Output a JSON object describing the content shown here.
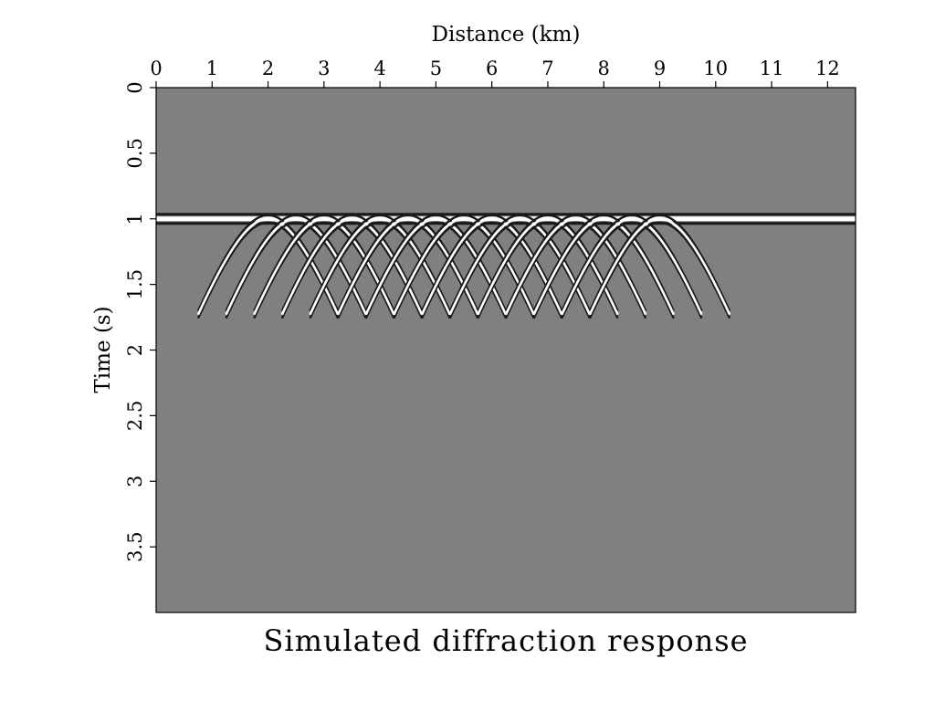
{
  "chart_data": {
    "type": "heatmap",
    "title": "Simulated diffraction response",
    "xlabel": "Distance (km)",
    "ylabel": "Time (s)",
    "xlim": [
      0,
      12.5
    ],
    "ylim": [
      0,
      4
    ],
    "x_axis_position": "top",
    "y_axis_inverted": true,
    "x_ticks": [
      0,
      1,
      2,
      3,
      4,
      5,
      6,
      7,
      8,
      9,
      10,
      11,
      12
    ],
    "y_ticks": [
      0,
      0.5,
      1,
      1.5,
      2,
      2.5,
      3,
      3.5
    ],
    "x_tick_labels": [
      "0",
      "1",
      "2",
      "3",
      "4",
      "5",
      "6",
      "7",
      "8",
      "9",
      "10",
      "11",
      "12"
    ],
    "y_tick_labels": [
      "0",
      "0.5",
      "1",
      "1.5",
      "2",
      "2.5",
      "3",
      "3.5"
    ],
    "background_color": "#808080",
    "reflector": {
      "time": 1.0,
      "x_from": 0,
      "x_to": 12.5
    },
    "diffractors": {
      "apex_time": 1.0,
      "apex_x": [
        2.0,
        2.5,
        3.0,
        3.5,
        4.0,
        4.5,
        5.0,
        5.5,
        6.0,
        6.5,
        7.0,
        7.5,
        8.0,
        8.5,
        9.0
      ],
      "half_width_km": 1.25,
      "bottom_time": 1.73
    },
    "grid": false
  }
}
